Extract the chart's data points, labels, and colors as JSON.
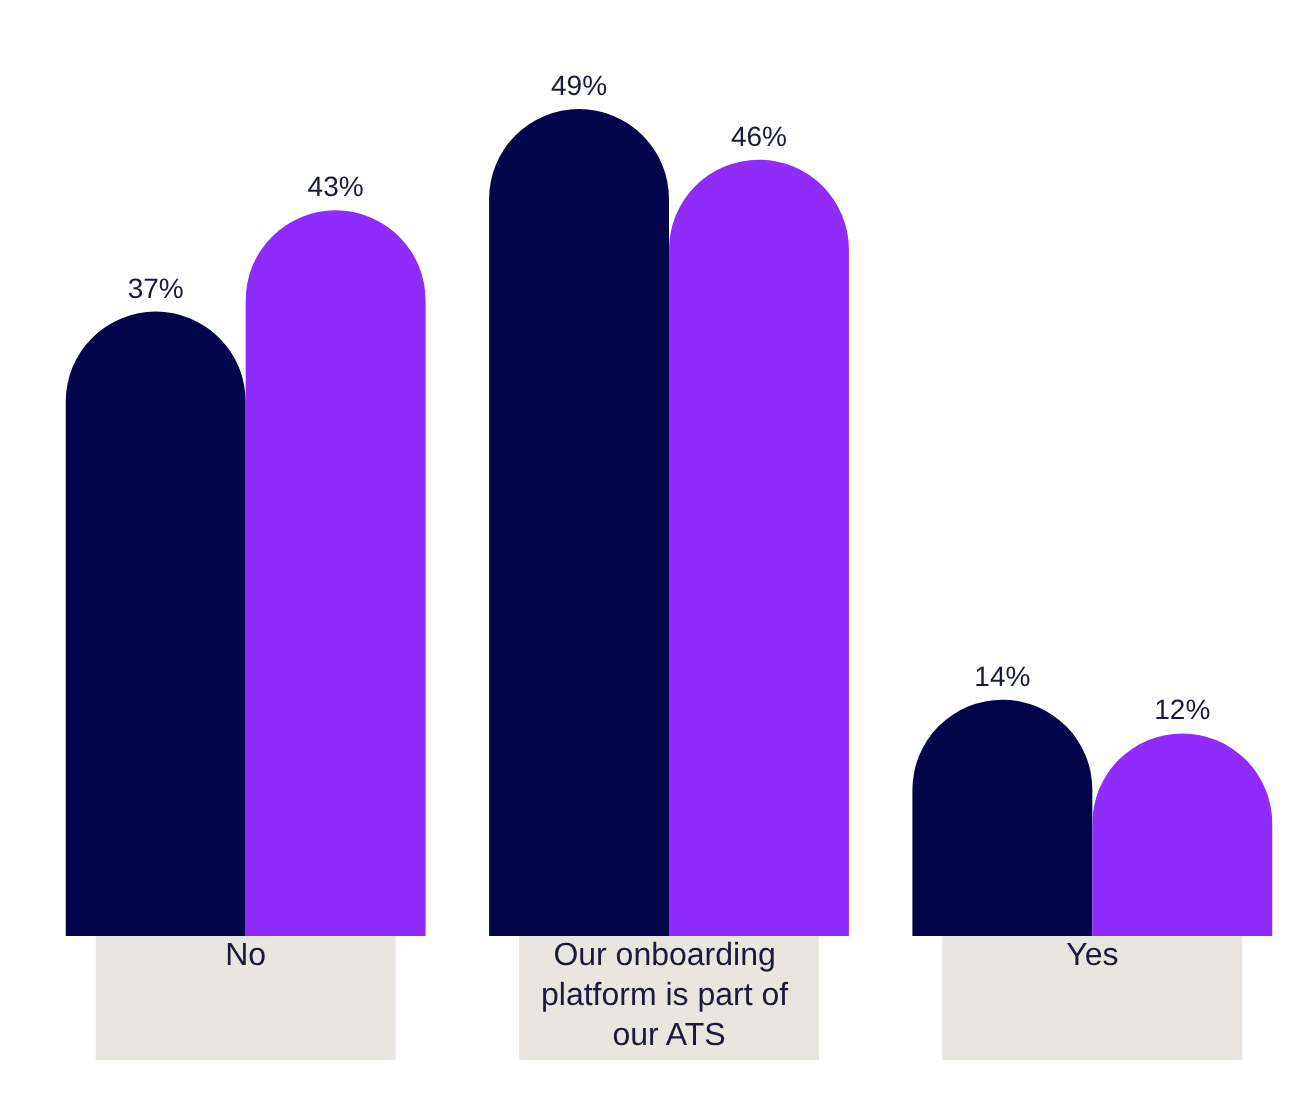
{
  "chart_data": {
    "type": "bar",
    "categories": [
      "No",
      "Our onboarding platform is part of our ATS",
      "Yes"
    ],
    "series": [
      {
        "color": "#03044a",
        "values": [
          37,
          49,
          14
        ],
        "value_labels": [
          "37%",
          "49%",
          "14%"
        ]
      },
      {
        "color": "#8f2bfb",
        "values": [
          43,
          46,
          12
        ],
        "value_labels": [
          "43%",
          "46%",
          "12%"
        ]
      }
    ]
  }
}
